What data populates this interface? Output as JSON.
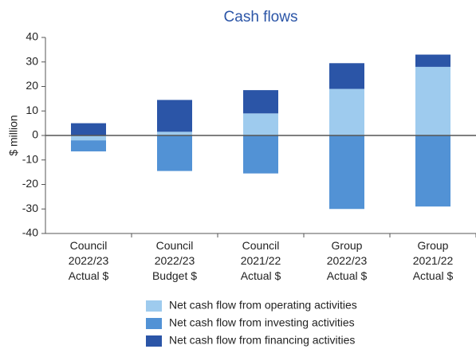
{
  "chart_data": {
    "type": "stacked_bar",
    "title": "Cash flows",
    "y_label": "$ million",
    "categories": [
      [
        "Council",
        "2022/23",
        "Actual $"
      ],
      [
        "Council",
        "2022/23",
        "Budget $"
      ],
      [
        "Council",
        "2021/22",
        "Actual $"
      ],
      [
        "Group",
        "2022/23",
        "Actual $"
      ],
      [
        "Group",
        "2021/22",
        "Actual $"
      ]
    ],
    "series": [
      {
        "name": "Net cash flow from operating activities",
        "color": "#9ecbee",
        "values": [
          -2,
          1.5,
          9,
          19,
          28
        ]
      },
      {
        "name": "Net cash flow from investing activities",
        "color": "#5292d5",
        "values": [
          -4.5,
          -14.5,
          -15.5,
          -30,
          -29
        ]
      },
      {
        "name": "Net cash flow from financing activities",
        "color": "#2b55a7",
        "values": [
          5,
          13,
          9.5,
          10.5,
          5
        ]
      }
    ],
    "ylim": [
      -40,
      40
    ],
    "yticks": [
      -40,
      -30,
      -20,
      -10,
      0,
      10,
      20,
      30,
      40
    ],
    "legend": "bottom"
  }
}
